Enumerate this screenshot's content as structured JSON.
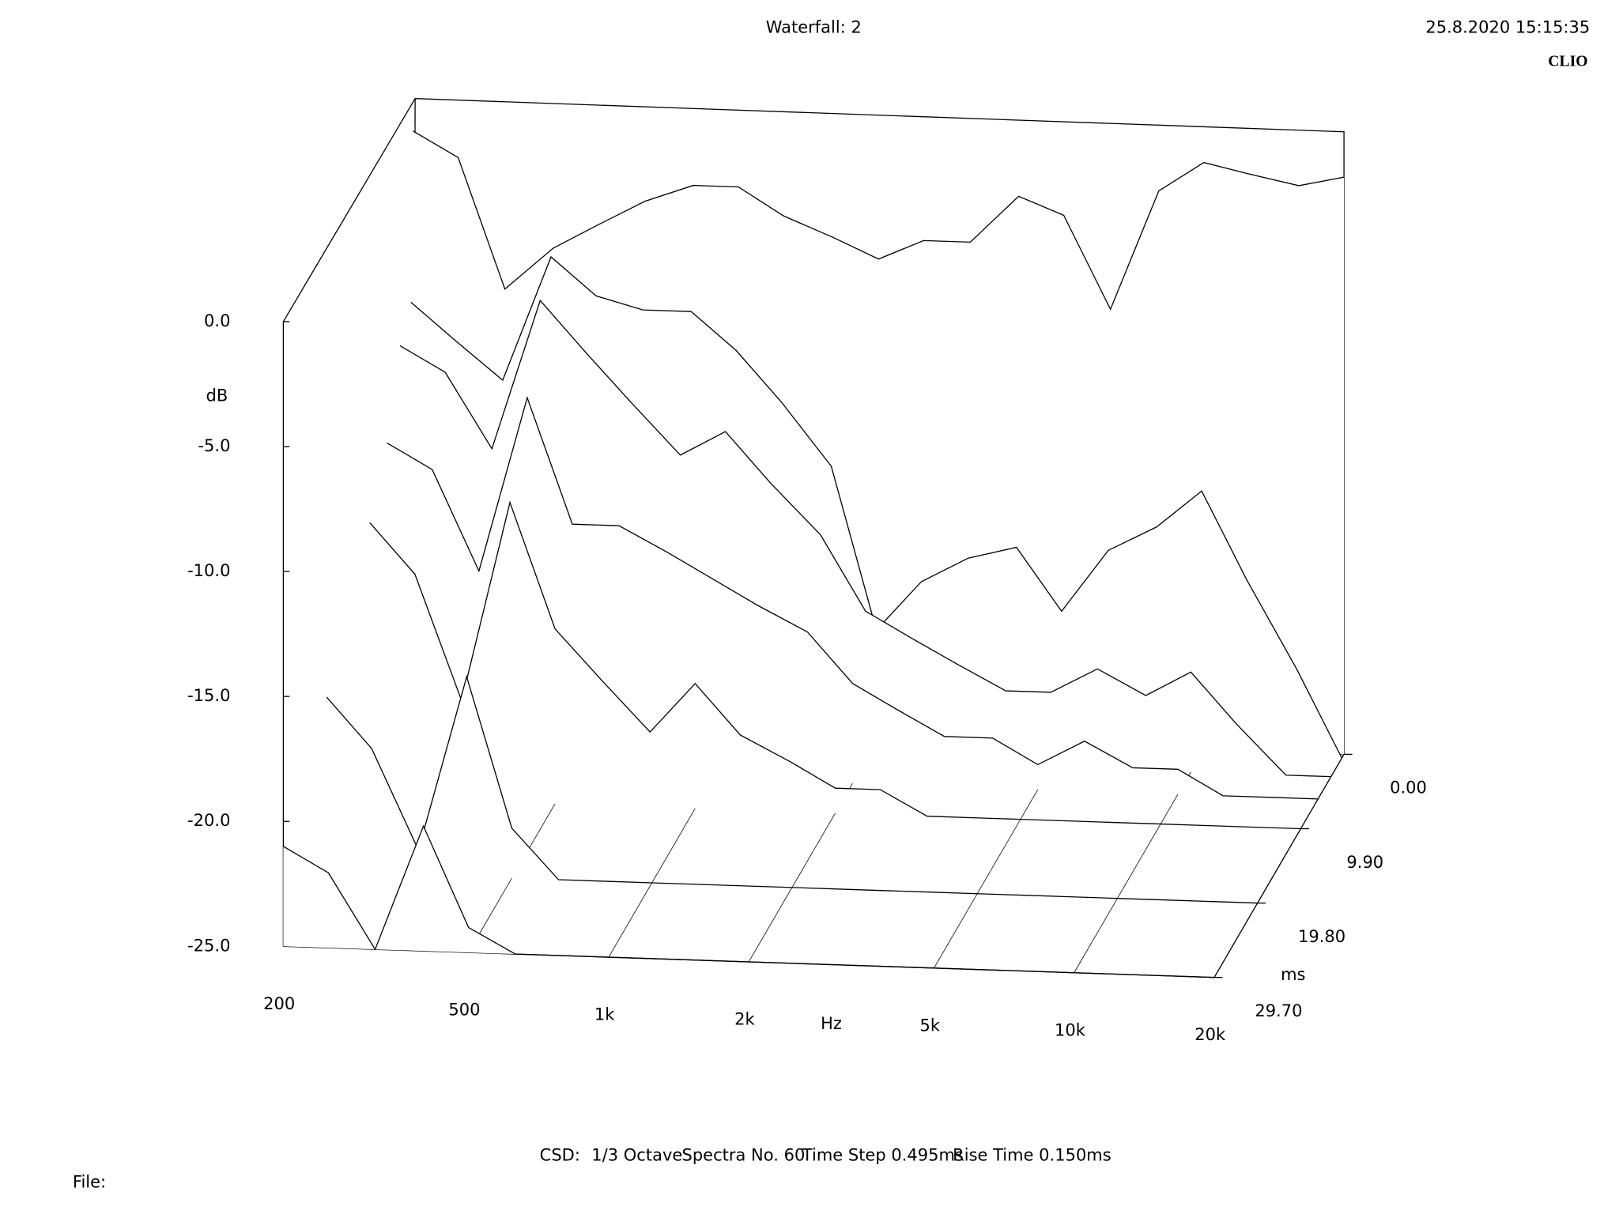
{
  "chart_data": {
    "type": "waterfall",
    "title": "Waterfall: 2",
    "timestamp": "25.8.2020 15:15:35",
    "brand": "CLIO",
    "x_label": "Hz",
    "y_label": "dB",
    "z_label": "ms",
    "footer": [
      "CSD:",
      "1/3 Octave",
      "Spectra No. 60",
      "Time Step 0.495ms",
      "Rise Time 0.150ms"
    ],
    "file_label": "File:",
    "x_scale": "log",
    "xlim": [
      200,
      20000
    ],
    "xticks": [
      200,
      500,
      {
        "value": 1000,
        "label": "1k"
      },
      {
        "value": 2000,
        "label": "2k"
      },
      {
        "value": 5000,
        "label": "5k"
      },
      {
        "value": 10000,
        "label": "10k"
      },
      {
        "value": 20000,
        "label": "20k"
      }
    ],
    "ylim": [
      -25,
      0
    ],
    "yticks": [
      {
        "value": -25,
        "label": "-25.0"
      },
      {
        "value": -20,
        "label": "-20.0"
      },
      {
        "value": -15,
        "label": "-15.0"
      },
      {
        "value": -10,
        "label": "-10.0"
      },
      {
        "value": -5,
        "label": "-5.0"
      },
      {
        "value": 0,
        "label": "0.0"
      }
    ],
    "zlim": [
      0,
      29.7
    ],
    "zticks": [
      {
        "value": 0,
        "label": "0.00"
      },
      {
        "value": 9.9,
        "label": "9.90"
      },
      {
        "value": 19.8,
        "label": "19.80"
      },
      {
        "value": 29.7,
        "label": "29.70"
      }
    ],
    "line_color": "#000000",
    "x": [
      200,
      250,
      315,
      400,
      500,
      630,
      800,
      1000,
      1250,
      1600,
      2000,
      2500,
      3150,
      4000,
      5000,
      6300,
      8000,
      10000,
      12500,
      16000,
      20000
    ],
    "z": [
      0,
      0.495,
      2.97,
      5.94,
      9.9,
      19.8,
      29.7
    ],
    "values": [
      [
        -1.3,
        -2.3,
        -7.5,
        -5.8,
        -4.8,
        -3.8,
        -3.1,
        -3.1,
        -4.2,
        -5.0,
        -5.8,
        -5.0,
        -5.0,
        -3.1,
        -3.8,
        -7.5,
        -2.7,
        -1.5,
        -1.9,
        -2.3,
        -1.9
      ],
      [
        -8.0,
        -9.5,
        -11.0,
        -6.0,
        -7.5,
        -8.0,
        -8.0,
        -9.5,
        -11.5,
        -14.0,
        -20.5,
        -18.5,
        -17.5,
        -17.0,
        -19.5,
        -17.0,
        -16.0,
        -14.5,
        -18.0,
        -21.5,
        -25.0
      ],
      [
        -9.0,
        -10.0,
        -13.0,
        -7.0,
        -9.0,
        -11.0,
        -13.0,
        -12.0,
        -14.0,
        -16.0,
        -19.0,
        -20.0,
        -21.0,
        -22.0,
        -22.0,
        -21.0,
        -22.0,
        -21.0,
        -23.0,
        -25.0,
        -25.0
      ],
      [
        -12.0,
        -13.0,
        -17.0,
        -10.0,
        -15.0,
        -15.0,
        -16.0,
        -17.0,
        -18.0,
        -19.0,
        -21.0,
        -22.0,
        -23.0,
        -23.0,
        -24.0,
        -23.0,
        -24.0,
        -24.0,
        -25.0,
        -25.0,
        -25.0
      ],
      [
        -14.0,
        -16.0,
        -21.0,
        -13.0,
        -18.0,
        -20.0,
        -22.0,
        -20.0,
        -22.0,
        -23.0,
        -24.0,
        -24.0,
        -25.0,
        -25.0,
        -25.0,
        -25.0,
        -25.0,
        -25.0,
        -25.0,
        -25.0,
        -25.0
      ],
      [
        -18.0,
        -20.0,
        -24.0,
        -17.0,
        -23.0,
        -25.0,
        -25.0,
        -25.0,
        -25.0,
        -25.0,
        -25.0,
        -25.0,
        -25.0,
        -25.0,
        -25.0,
        -25.0,
        -25.0,
        -25.0,
        -25.0,
        -25.0,
        -25.0
      ],
      [
        -21.0,
        -22.0,
        -25.0,
        -20.0,
        -24.0,
        -25.0,
        -25.0,
        -25.0,
        -25.0,
        -25.0,
        -25.0,
        -25.0,
        -25.0,
        -25.0,
        -25.0,
        -25.0,
        -25.0,
        -25.0,
        -25.0,
        -25.0,
        -25.0
      ]
    ]
  }
}
